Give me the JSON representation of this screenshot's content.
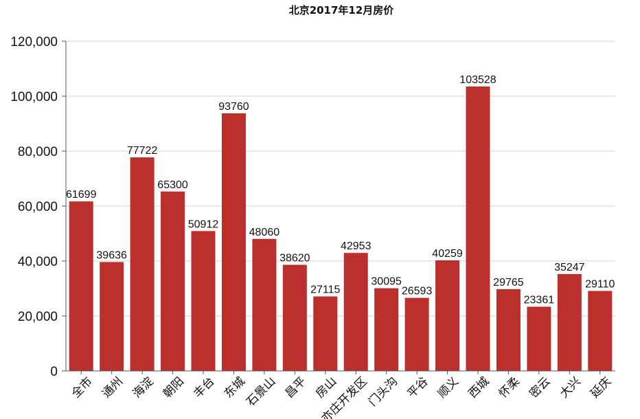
{
  "chart_data": {
    "type": "bar",
    "title": "北京2017年12月房价",
    "xlabel": "",
    "ylabel": "",
    "categories": [
      "全市",
      "通州",
      "海淀",
      "朝阳",
      "丰台",
      "东城",
      "石景山",
      "昌平",
      "房山",
      "亦庄开发区",
      "门头沟",
      "平谷",
      "顺义",
      "西城",
      "怀柔",
      "密云",
      "大兴",
      "延庆"
    ],
    "values": [
      61699,
      39636,
      77722,
      65300,
      50912,
      93760,
      48060,
      38620,
      27115,
      42953,
      30095,
      26593,
      40259,
      103528,
      29765,
      23361,
      35247,
      29110
    ],
    "ylim": [
      0,
      120000
    ],
    "yticks": [
      0,
      20000,
      40000,
      60000,
      80000,
      100000,
      120000
    ],
    "ytick_labels": [
      "0",
      "20,000",
      "40,000",
      "60,000",
      "80,000",
      "100,000",
      "120,000"
    ],
    "grid": true,
    "legend": "none",
    "colors": {
      "bar": "#bb2f2c",
      "grid": "#d0d0d0",
      "axis": "#555555"
    }
  }
}
